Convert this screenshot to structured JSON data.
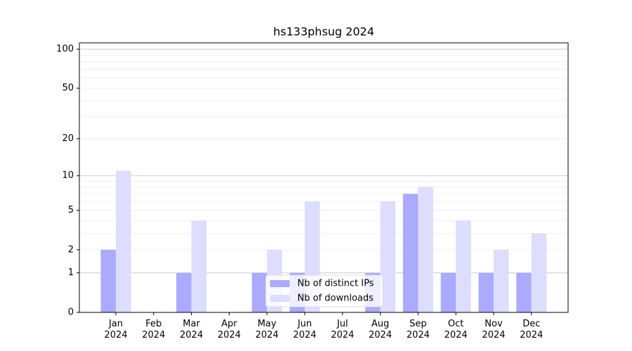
{
  "chart_data": {
    "type": "bar",
    "title": "hs133phsug 2024",
    "categories": [
      "Jan 2024",
      "Feb 2024",
      "Mar 2024",
      "Apr 2024",
      "May 2024",
      "Jun 2024",
      "Jul 2024",
      "Aug 2024",
      "Sep 2024",
      "Oct 2024",
      "Nov 2024",
      "Dec 2024"
    ],
    "series": [
      {
        "name": "Nb of distinct IPs",
        "color": "#aaaaff",
        "values": [
          2,
          0,
          1,
          0,
          1,
          1,
          0,
          1,
          7,
          1,
          1,
          1
        ]
      },
      {
        "name": "Nb of downloads",
        "color": "#ddddff",
        "values": [
          11,
          0,
          4,
          0,
          2,
          6,
          0,
          6,
          8,
          4,
          2,
          3
        ]
      }
    ],
    "yscale": "log1p",
    "ylim": [
      0,
      112
    ],
    "yticks": [
      0,
      1,
      2,
      5,
      10,
      20,
      50,
      100
    ],
    "major_grid": [
      1,
      10,
      100
    ],
    "minor_grid": [
      2,
      3,
      4,
      5,
      6,
      7,
      8,
      9,
      20,
      30,
      40,
      50,
      60,
      70,
      80,
      90
    ],
    "legend": "lower center"
  }
}
